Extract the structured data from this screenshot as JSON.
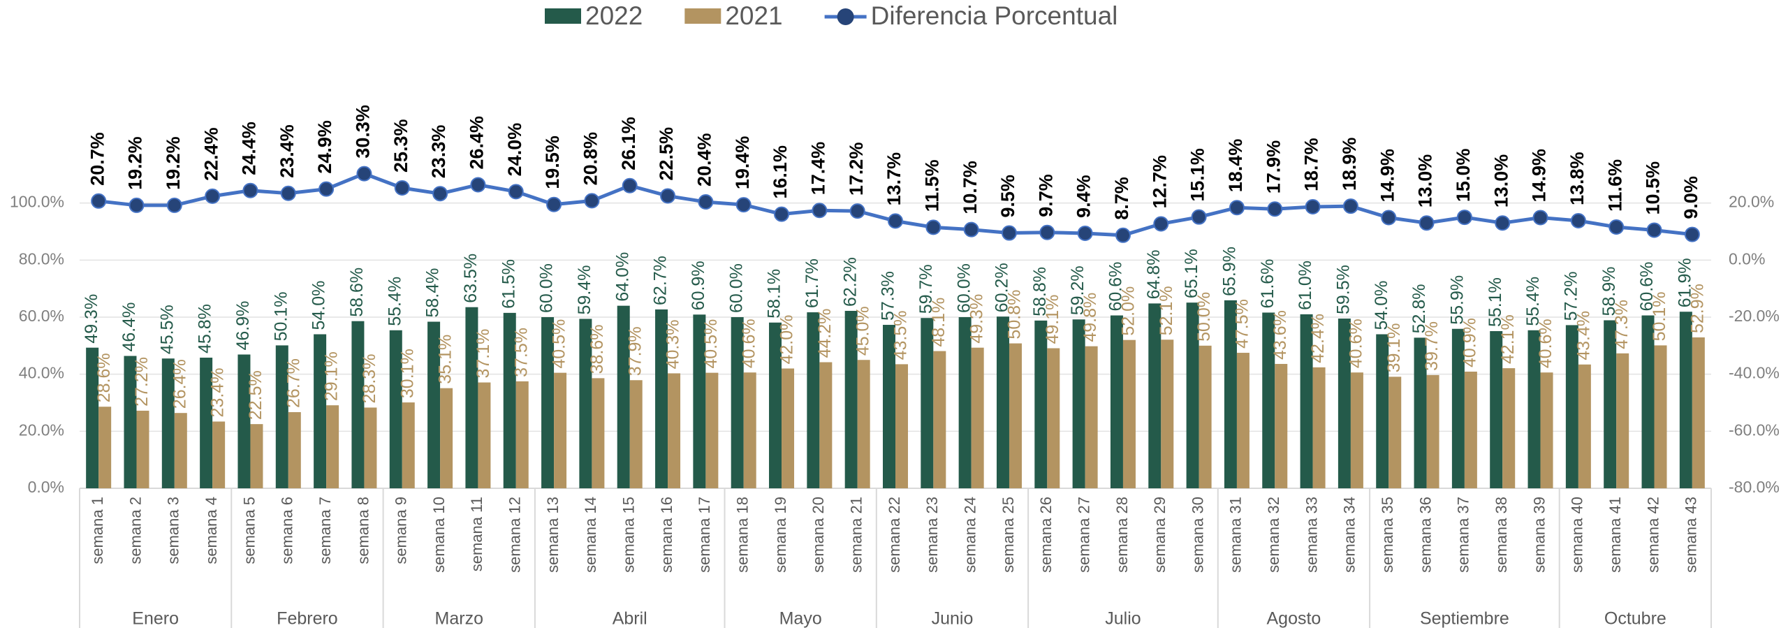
{
  "chart_data": {
    "type": "bar",
    "categories": [
      "semana 1",
      "semana 2",
      "semana 3",
      "semana 4",
      "semana 5",
      "semana 6",
      "semana 7",
      "semana 8",
      "semana 9",
      "semana 10",
      "semana 11",
      "semana 12",
      "semana 13",
      "semana 14",
      "semana 15",
      "semana 16",
      "semana 17",
      "semana 18",
      "semana 19",
      "semana 20",
      "semana 21",
      "semana 22",
      "semana 23",
      "semana 24",
      "semana 25",
      "semana 26",
      "semana 27",
      "semana 28",
      "semana 29",
      "semana 30",
      "semana 31",
      "semana 32",
      "semana 33",
      "semana 34",
      "semana 35",
      "semana 36",
      "semana 37",
      "semana 38",
      "semana 39",
      "semana 40",
      "semana 41",
      "semana 42",
      "semana 43"
    ],
    "groups": [
      "Enero",
      "Enero",
      "Enero",
      "Enero",
      "Febrero",
      "Febrero",
      "Febrero",
      "Febrero",
      "Marzo",
      "Marzo",
      "Marzo",
      "Marzo",
      "Abril",
      "Abril",
      "Abril",
      "Abril",
      "Abril",
      "Mayo",
      "Mayo",
      "Mayo",
      "Mayo",
      "Junio",
      "Junio",
      "Junio",
      "Junio",
      "Julio",
      "Julio",
      "Julio",
      "Julio",
      "Julio",
      "Agosto",
      "Agosto",
      "Agosto",
      "Agosto",
      "Septiembre",
      "Septiembre",
      "Septiembre",
      "Septiembre",
      "Septiembre",
      "Octubre",
      "Octubre",
      "Octubre",
      "Octubre"
    ],
    "series": [
      {
        "name": "2022",
        "type": "bar",
        "color": "#245a4a",
        "values": [
          49.3,
          46.4,
          45.5,
          45.8,
          46.9,
          50.1,
          54.0,
          58.6,
          55.4,
          58.4,
          63.5,
          61.5,
          60.0,
          59.4,
          64.0,
          62.7,
          60.9,
          60.0,
          58.1,
          61.7,
          62.2,
          57.3,
          59.7,
          60.0,
          60.2,
          58.8,
          59.2,
          60.6,
          64.8,
          65.1,
          65.9,
          61.6,
          61.0,
          59.5,
          54.0,
          52.8,
          55.9,
          55.1,
          55.4,
          57.2,
          58.9,
          60.6,
          61.9
        ],
        "value_labels": [
          "49.3%",
          "46.4%",
          "45.5%",
          "45.8%",
          "46.9%",
          "50.1%",
          "54.0%",
          "58.6%",
          "55.4%",
          "58.4%",
          "63.5%",
          "61.5%",
          "60.0%",
          "59.4%",
          "64.0%",
          "62.7%",
          "60.9%",
          "60.0%",
          "58.1%",
          "61.7%",
          "62.2%",
          "57.3%",
          "59.7%",
          "60.0%",
          "60.2%",
          "58.8%",
          "59.2%",
          "60.6%",
          "64.8%",
          "65.1%",
          "65.9%",
          "61.6%",
          "61.0%",
          "59.5%",
          "54.0%",
          "52.8%",
          "55.9%",
          "55.1%",
          "55.4%",
          "57.2%",
          "58.9%",
          "60.6%",
          "61.9%"
        ]
      },
      {
        "name": "2021",
        "type": "bar",
        "color": "#b39461",
        "values": [
          28.6,
          27.2,
          26.4,
          23.4,
          22.5,
          26.7,
          29.1,
          28.3,
          30.1,
          35.1,
          37.1,
          37.5,
          40.5,
          38.6,
          37.9,
          40.3,
          40.5,
          40.6,
          42.0,
          44.2,
          45.0,
          43.5,
          48.1,
          49.3,
          50.8,
          49.1,
          49.8,
          52.0,
          52.1,
          50.0,
          47.5,
          43.6,
          42.4,
          40.6,
          39.1,
          39.7,
          40.9,
          42.1,
          40.6,
          43.4,
          47.3,
          50.1,
          52.9
        ],
        "value_labels": [
          "28.6%",
          "27.2%",
          "26.4%",
          "23.4%",
          "22.5%",
          "26.7%",
          "29.1%",
          "28.3%",
          "30.1%",
          "35.1%",
          "37.1%",
          "37.5%",
          "40.5%",
          "38.6%",
          "37.9%",
          "40.3%",
          "40.5%",
          "40.6%",
          "42.0%",
          "44.2%",
          "45.0%",
          "43.5%",
          "48.1%",
          "49.3%",
          "50.8%",
          "49.1%",
          "49.8%",
          "52.0%",
          "52.1%",
          "50.0%",
          "47.5%",
          "43.6%",
          "42.4%",
          "40.6%",
          "39.1%",
          "39.7%",
          "40.9%",
          "42.1%",
          "40.6%",
          "43.4%",
          "47.3%",
          "50.1%",
          "52.9%"
        ]
      },
      {
        "name": "Diferencia Porcentual",
        "type": "line",
        "axis": "y2",
        "color": "#4472c4",
        "marker_color": "#264478",
        "values": [
          20.7,
          19.2,
          19.2,
          22.4,
          24.4,
          23.4,
          24.9,
          30.3,
          25.3,
          23.3,
          26.4,
          24.0,
          19.5,
          20.8,
          26.1,
          22.5,
          20.4,
          19.4,
          16.1,
          17.4,
          17.2,
          13.7,
          11.5,
          10.7,
          9.5,
          9.7,
          9.4,
          8.7,
          12.7,
          15.1,
          18.4,
          17.9,
          18.7,
          18.9,
          14.9,
          13.0,
          15.0,
          13.0,
          14.9,
          13.8,
          11.6,
          10.5,
          9.0
        ],
        "value_labels": [
          "20.7%",
          "19.2%",
          "19.2%",
          "22.4%",
          "24.4%",
          "23.4%",
          "24.9%",
          "30.3%",
          "25.3%",
          "23.3%",
          "26.4%",
          "24.0%",
          "19.5%",
          "20.8%",
          "26.1%",
          "22.5%",
          "20.4%",
          "19.4%",
          "16.1%",
          "17.4%",
          "17.2%",
          "13.7%",
          "11.5%",
          "10.7%",
          "9.5%",
          "9.7%",
          "9.4%",
          "8.7%",
          "12.7%",
          "15.1%",
          "18.4%",
          "17.9%",
          "18.7%",
          "18.9%",
          "14.9%",
          "13.0%",
          "15.0%",
          "13.0%",
          "14.9%",
          "13.8%",
          "11.6%",
          "10.5%",
          "9.0%"
        ]
      }
    ],
    "ylim": [
      0,
      120
    ],
    "yticks": [
      {
        "value": 0,
        "label": "0.0%"
      },
      {
        "value": 20,
        "label": "20.0%"
      },
      {
        "value": 40,
        "label": "40.0%"
      },
      {
        "value": 60,
        "label": "60.0%"
      },
      {
        "value": 80,
        "label": "80.0%"
      },
      {
        "value": 100,
        "label": "100.0%"
      }
    ],
    "y2lim": [
      -80,
      40
    ],
    "y2ticks": [
      {
        "value": -80,
        "label": "-80.0%"
      },
      {
        "value": -60,
        "label": "-60.0%"
      },
      {
        "value": -40,
        "label": "-40.0%"
      },
      {
        "value": -20,
        "label": "-20.0%"
      },
      {
        "value": 0,
        "label": "0.0%"
      },
      {
        "value": 20,
        "label": "20.0%"
      }
    ],
    "grid": true,
    "legend": "top"
  }
}
